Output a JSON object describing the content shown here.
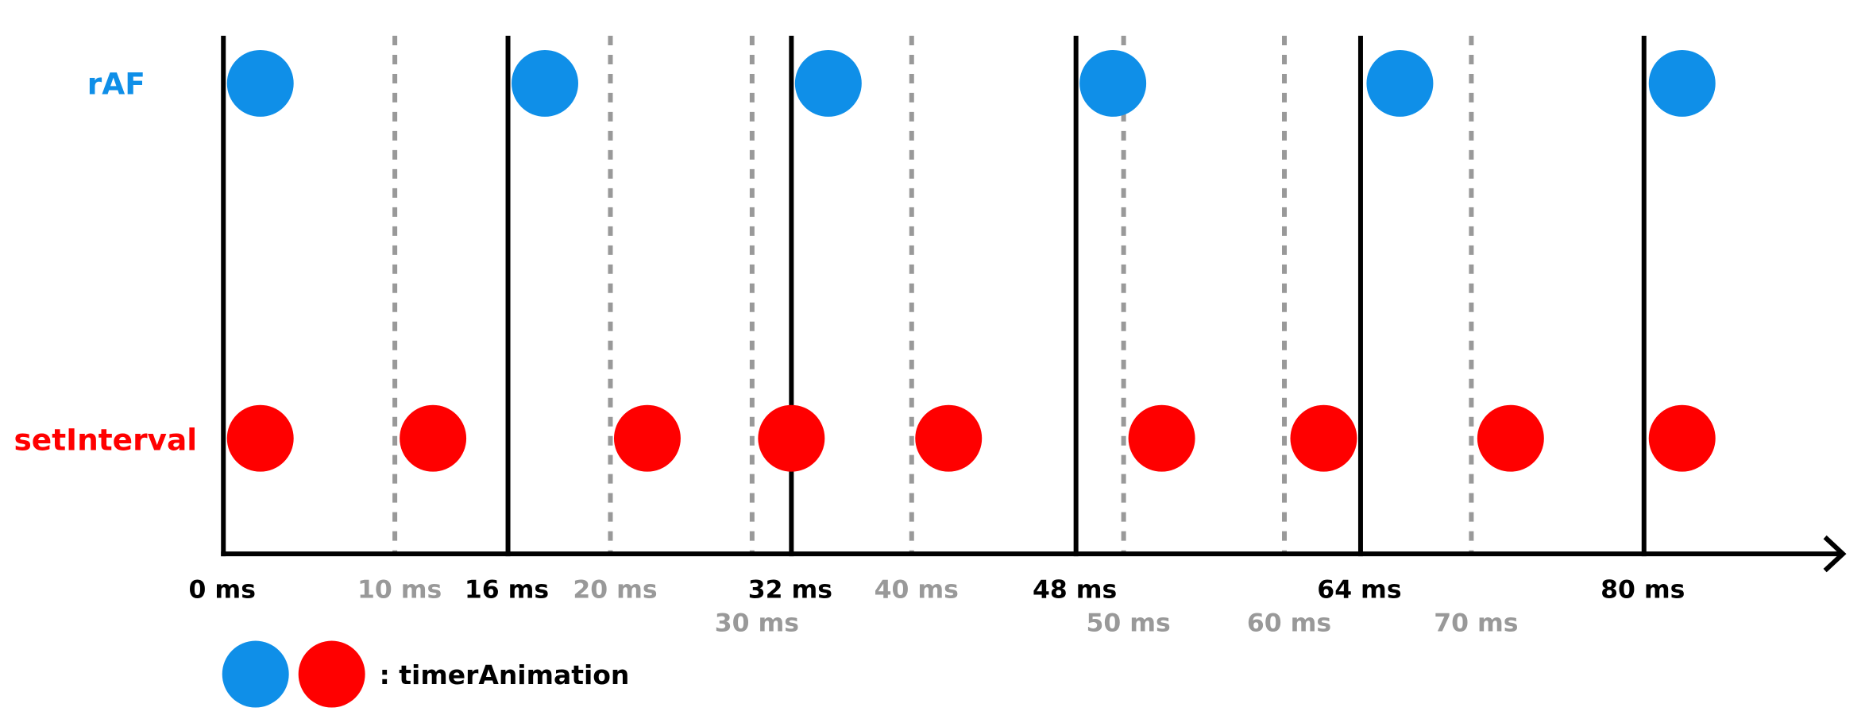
{
  "rows": [
    "rAF",
    "setInterval"
  ],
  "major_ticks": [
    "0 ms",
    "16 ms",
    "32 ms",
    "48 ms",
    "64 ms",
    "80 ms"
  ],
  "minor_ticks": [
    "10 ms",
    "20 ms",
    "30 ms",
    "40 ms",
    "50 ms",
    "60 ms",
    "70 ms"
  ],
  "legend": ": timerAnimation"
}
